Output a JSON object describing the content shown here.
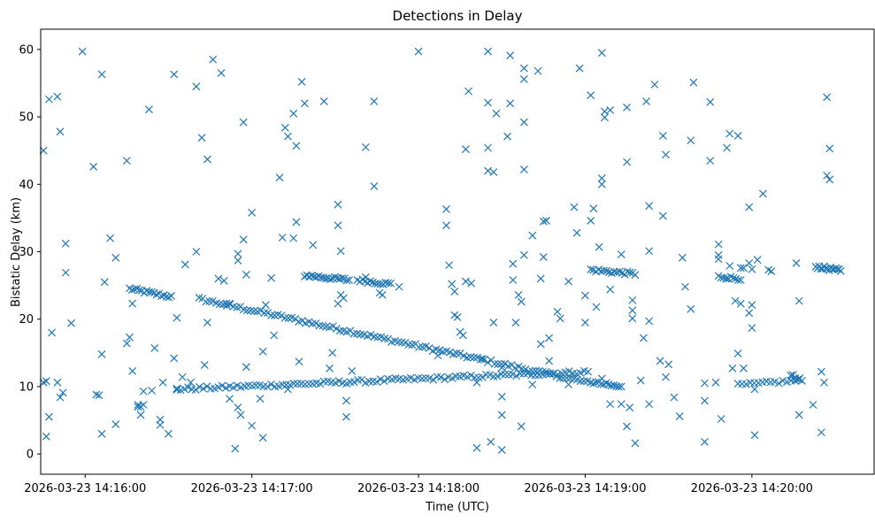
{
  "chart_data": {
    "type": "scatter",
    "title": "Detections in Delay",
    "xlabel": "Time (UTC)",
    "ylabel": "Bistatic Delay (km)",
    "x_unit": "seconds since 2026-03-23 14:16:00 UTC",
    "xlim": [
      -16,
      284
    ],
    "ylim": [
      -3,
      63
    ],
    "x_ticks": [
      {
        "value": 0,
        "label": "2026-03-23 14:16:00"
      },
      {
        "value": 60,
        "label": "2026-03-23 14:17:00"
      },
      {
        "value": 120,
        "label": "2026-03-23 14:18:00"
      },
      {
        "value": 180,
        "label": "2026-03-23 14:19:00"
      },
      {
        "value": 240,
        "label": "2026-03-23 14:20:00"
      }
    ],
    "y_ticks": [
      0,
      10,
      20,
      30,
      40,
      50,
      60
    ],
    "marker": "x",
    "color": "#1f77b4",
    "grid": false,
    "tracks": [
      {
        "name": "upper descending track",
        "t_start": 16,
        "t_end": 31,
        "y_start": 24.5,
        "y_end": 23.3,
        "count": 18
      },
      {
        "name": "upper descending track (cont.)",
        "t_start": 41,
        "t_end": 182,
        "y_start": 23.0,
        "y_end": 10.5,
        "count": 115
      },
      {
        "name": "mid plateau",
        "t_start": 79,
        "t_end": 95,
        "y_start": 26.5,
        "y_end": 25.8,
        "count": 20
      },
      {
        "name": "mid plateau 2",
        "t_start": 98,
        "t_end": 110,
        "y_start": 25.8,
        "y_end": 25.2,
        "count": 14
      },
      {
        "name": "lower rising track",
        "t_start": 33,
        "t_end": 181,
        "y_start": 9.6,
        "y_end": 12.2,
        "count": 110
      },
      {
        "name": "late plateau",
        "t_start": 182,
        "t_end": 198,
        "y_start": 27.3,
        "y_end": 26.7,
        "count": 18
      },
      {
        "name": "late low cluster",
        "t_start": 183,
        "t_end": 193,
        "y_start": 10.6,
        "y_end": 9.9,
        "count": 12
      },
      {
        "name": "late mid cluster",
        "t_start": 228,
        "t_end": 236,
        "y_start": 26.3,
        "y_end": 26.0,
        "count": 10
      },
      {
        "name": "late low segment",
        "t_start": 235,
        "t_end": 257,
        "y_start": 10.2,
        "y_end": 10.9,
        "count": 16
      },
      {
        "name": "end cluster",
        "t_start": 263,
        "t_end": 272,
        "y_start": 27.8,
        "y_end": 27.2,
        "count": 16
      },
      {
        "name": "end low cluster",
        "t_start": 254,
        "t_end": 258,
        "y_start": 11.8,
        "y_end": 10.9,
        "count": 6
      }
    ],
    "points": [
      [
        -15,
        45
      ],
      [
        -15,
        10.6
      ],
      [
        -14,
        10.8
      ],
      [
        -14,
        2.6
      ],
      [
        -13,
        52.6
      ],
      [
        -12,
        18
      ],
      [
        -13,
        5.5
      ],
      [
        -10,
        10.6
      ],
      [
        -10,
        53
      ],
      [
        -9,
        47.8
      ],
      [
        -9,
        8.4
      ],
      [
        -8,
        9.1
      ],
      [
        -7,
        31.2
      ],
      [
        -7,
        26.9
      ],
      [
        -5,
        19.4
      ],
      [
        -1,
        59.7
      ],
      [
        3,
        42.6
      ],
      [
        4,
        8.8
      ],
      [
        5,
        8.7
      ],
      [
        6,
        14.8
      ],
      [
        6,
        3
      ],
      [
        6,
        56.3
      ],
      [
        7,
        25.5
      ],
      [
        9,
        32
      ],
      [
        11,
        29.1
      ],
      [
        11,
        4.4
      ],
      [
        15,
        16.4
      ],
      [
        15,
        43.5
      ],
      [
        16,
        17.3
      ],
      [
        17,
        22.3
      ],
      [
        17,
        12.3
      ],
      [
        19,
        7
      ],
      [
        19,
        7.3
      ],
      [
        20,
        7
      ],
      [
        20,
        5.8
      ],
      [
        21,
        7.3
      ],
      [
        21,
        9.3
      ],
      [
        23,
        51.1
      ],
      [
        24,
        9.4
      ],
      [
        25,
        15.7
      ],
      [
        27,
        5.1
      ],
      [
        27,
        4.3
      ],
      [
        28,
        10.6
      ],
      [
        30,
        3
      ],
      [
        32,
        56.3
      ],
      [
        32,
        14.2
      ],
      [
        33,
        20.2
      ],
      [
        33,
        9.7
      ],
      [
        35,
        11.4
      ],
      [
        36,
        28.1
      ],
      [
        38,
        10.6
      ],
      [
        40,
        30
      ],
      [
        40,
        54.5
      ],
      [
        42,
        46.9
      ],
      [
        43,
        13.2
      ],
      [
        44,
        19.5
      ],
      [
        44,
        43.7
      ],
      [
        46,
        58.5
      ],
      [
        48,
        26
      ],
      [
        49,
        56.5
      ],
      [
        50,
        25.7
      ],
      [
        51,
        22
      ],
      [
        52,
        8.2
      ],
      [
        52,
        22.3
      ],
      [
        54,
        0.8
      ],
      [
        55,
        28.7
      ],
      [
        55,
        29.7
      ],
      [
        55,
        6.9
      ],
      [
        56,
        5.8
      ],
      [
        57,
        31.8
      ],
      [
        57,
        49.2
      ],
      [
        58,
        12.9
      ],
      [
        58,
        26.6
      ],
      [
        60,
        35.8
      ],
      [
        60,
        4.2
      ],
      [
        63,
        8.2
      ],
      [
        64,
        15.2
      ],
      [
        64,
        2.4
      ],
      [
        65,
        22.1
      ],
      [
        67,
        26.1
      ],
      [
        68,
        17.6
      ],
      [
        70,
        41
      ],
      [
        71,
        32.1
      ],
      [
        72,
        48.4
      ],
      [
        73,
        47.1
      ],
      [
        73,
        9.6
      ],
      [
        75,
        32
      ],
      [
        75,
        50.5
      ],
      [
        76,
        34.4
      ],
      [
        76,
        45.7
      ],
      [
        77,
        13.7
      ],
      [
        78,
        55.2
      ],
      [
        79,
        52
      ],
      [
        82,
        31
      ],
      [
        86,
        52.3
      ],
      [
        88,
        12.7
      ],
      [
        89,
        15
      ],
      [
        91,
        33.9
      ],
      [
        91,
        37
      ],
      [
        91,
        22.3
      ],
      [
        92,
        30.1
      ],
      [
        92,
        23.6
      ],
      [
        93,
        23.1
      ],
      [
        94,
        7.9
      ],
      [
        94,
        5.5
      ],
      [
        96,
        12.3
      ],
      [
        101,
        45.5
      ],
      [
        101,
        26.2
      ],
      [
        104,
        39.7
      ],
      [
        104,
        52.3
      ],
      [
        106,
        23.9
      ],
      [
        107,
        23.6
      ],
      [
        113,
        24.8
      ],
      [
        120,
        59.7
      ],
      [
        127,
        14.6
      ],
      [
        130,
        33.9
      ],
      [
        130,
        36.3
      ],
      [
        131,
        28
      ],
      [
        132,
        25.2
      ],
      [
        133,
        24.1
      ],
      [
        133,
        20.6
      ],
      [
        134,
        20.3
      ],
      [
        135,
        18.1
      ],
      [
        136,
        17.6
      ],
      [
        137,
        45.2
      ],
      [
        137,
        25.6
      ],
      [
        138,
        53.8
      ],
      [
        139,
        25.3
      ],
      [
        141,
        10.6
      ],
      [
        141,
        0.9
      ],
      [
        143,
        14.1
      ],
      [
        145,
        42
      ],
      [
        145,
        45.4
      ],
      [
        145,
        59.7
      ],
      [
        145,
        52.1
      ],
      [
        146,
        1.8
      ],
      [
        147,
        41.8
      ],
      [
        147,
        19.5
      ],
      [
        148,
        50.5
      ],
      [
        150,
        12.8
      ],
      [
        150,
        8.5
      ],
      [
        150,
        5.8
      ],
      [
        150,
        0.6
      ],
      [
        152,
        47.1
      ],
      [
        153,
        52
      ],
      [
        153,
        59.1
      ],
      [
        154,
        25.8
      ],
      [
        154,
        28.2
      ],
      [
        155,
        19.5
      ],
      [
        156,
        23.6
      ],
      [
        157,
        4.1
      ],
      [
        157,
        22.6
      ],
      [
        158,
        29.5
      ],
      [
        158,
        49.2
      ],
      [
        158,
        55.6
      ],
      [
        158,
        57.2
      ],
      [
        158,
        42.2
      ],
      [
        161,
        32.4
      ],
      [
        161,
        10.3
      ],
      [
        163,
        56.8
      ],
      [
        164,
        16.3
      ],
      [
        164,
        26
      ],
      [
        165,
        34.5
      ],
      [
        165,
        29.2
      ],
      [
        166,
        34.6
      ],
      [
        167,
        17.2
      ],
      [
        167,
        13.8
      ],
      [
        170,
        21.1
      ],
      [
        171,
        20.1
      ],
      [
        174,
        10.3
      ],
      [
        174,
        25.6
      ],
      [
        176,
        36.6
      ],
      [
        177,
        32.8
      ],
      [
        178,
        57.2
      ],
      [
        180,
        23.5
      ],
      [
        180,
        19.5
      ],
      [
        182,
        53.2
      ],
      [
        182,
        34.6
      ],
      [
        183,
        36.4
      ],
      [
        184,
        21.8
      ],
      [
        185,
        30.7
      ],
      [
        186,
        59.5
      ],
      [
        186,
        40.9
      ],
      [
        186,
        40
      ],
      [
        186,
        11.2
      ],
      [
        187,
        50.8
      ],
      [
        187,
        49.9
      ],
      [
        189,
        24.4
      ],
      [
        189,
        51
      ],
      [
        189,
        7.4
      ],
      [
        193,
        7.4
      ],
      [
        193,
        29.6
      ],
      [
        195,
        4.1
      ],
      [
        195,
        43.3
      ],
      [
        195,
        51.4
      ],
      [
        196,
        6.9
      ],
      [
        197,
        20.1
      ],
      [
        197,
        22.8
      ],
      [
        197,
        21.3
      ],
      [
        198,
        1.6
      ],
      [
        200,
        10.9
      ],
      [
        201,
        17.2
      ],
      [
        202,
        52.3
      ],
      [
        203,
        36.8
      ],
      [
        203,
        30.1
      ],
      [
        203,
        19.7
      ],
      [
        203,
        7.4
      ],
      [
        205,
        54.8
      ],
      [
        207,
        13.8
      ],
      [
        208,
        35.3
      ],
      [
        208,
        47.2
      ],
      [
        209,
        44.4
      ],
      [
        209,
        11.4
      ],
      [
        210,
        13.3
      ],
      [
        212,
        8.4
      ],
      [
        214,
        5.6
      ],
      [
        215,
        29.1
      ],
      [
        216,
        24.8
      ],
      [
        218,
        46.5
      ],
      [
        218,
        21.5
      ],
      [
        219,
        55.1
      ],
      [
        223,
        1.8
      ],
      [
        223,
        10.5
      ],
      [
        223,
        7.9
      ],
      [
        225,
        52.2
      ],
      [
        225,
        43.5
      ],
      [
        227,
        10.6
      ],
      [
        228,
        28.9
      ],
      [
        228,
        31.1
      ],
      [
        228,
        29.5
      ],
      [
        229,
        5.2
      ],
      [
        231,
        45.4
      ],
      [
        231,
        26.1
      ],
      [
        232,
        27.9
      ],
      [
        232,
        47.5
      ],
      [
        233,
        12.7
      ],
      [
        234,
        22.7
      ],
      [
        235,
        47.2
      ],
      [
        235,
        14.9
      ],
      [
        236,
        27.6
      ],
      [
        236,
        22.3
      ],
      [
        237,
        27.6
      ],
      [
        237,
        12.7
      ],
      [
        239,
        36.6
      ],
      [
        239,
        28.3
      ],
      [
        239,
        20.9
      ],
      [
        240,
        18.7
      ],
      [
        240,
        22.1
      ],
      [
        240,
        27.4
      ],
      [
        241,
        2.8
      ],
      [
        241,
        9.6
      ],
      [
        242,
        28.8
      ],
      [
        244,
        38.6
      ],
      [
        246,
        27.3
      ],
      [
        247,
        27.1
      ],
      [
        256,
        28.3
      ],
      [
        257,
        5.8
      ],
      [
        257,
        22.7
      ],
      [
        262,
        7.3
      ],
      [
        265,
        12.2
      ],
      [
        265,
        3.2
      ],
      [
        266,
        10.6
      ],
      [
        267,
        52.9
      ],
      [
        267,
        41.3
      ],
      [
        268,
        45.3
      ],
      [
        268,
        40.7
      ]
    ]
  }
}
